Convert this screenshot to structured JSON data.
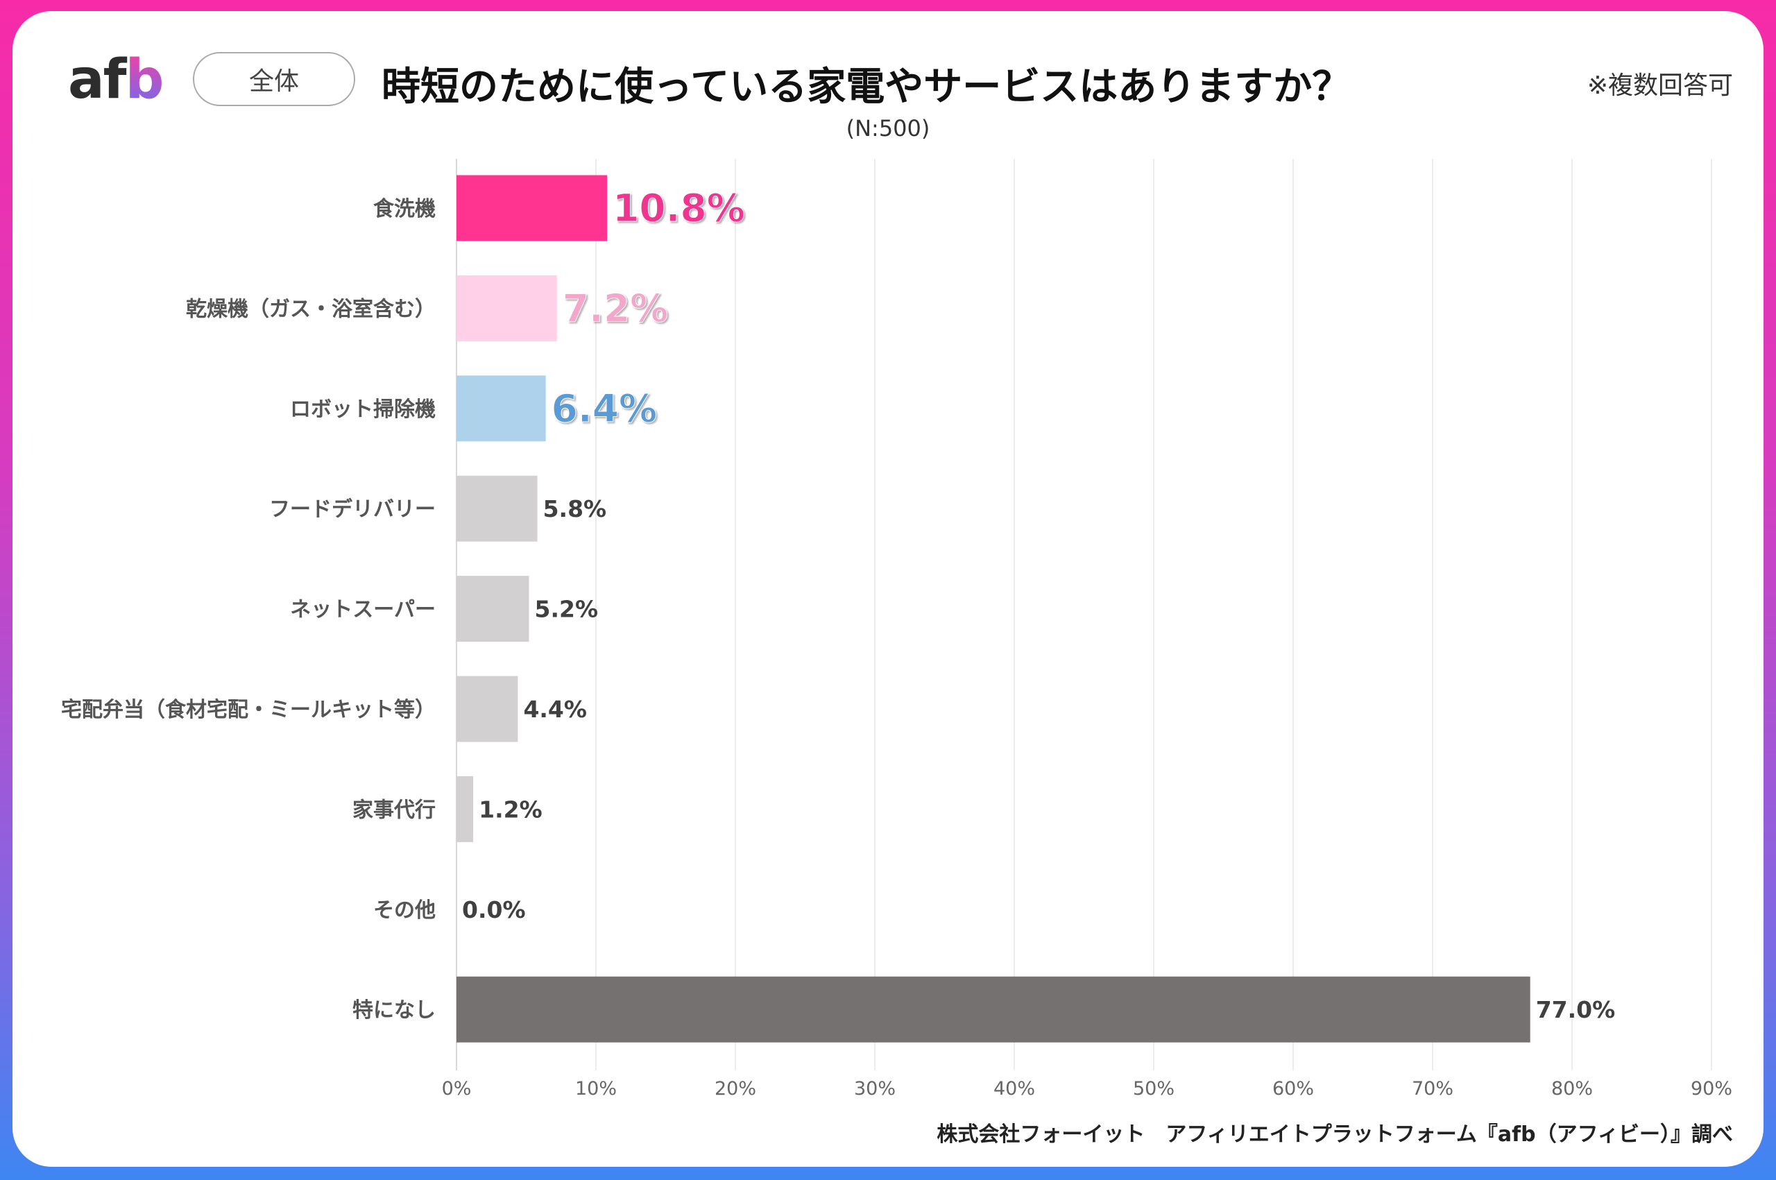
{
  "header": {
    "logo": "afb",
    "segment_label": "全体",
    "title": "時短のために使っている家電やサービスはありますか？",
    "note": "※複数回答可",
    "sample": "(N:500)"
  },
  "footer": "株式会社フォーイット　アフィリエイトプラットフォーム『afb（アフィビー）』調べ",
  "chart_data": {
    "type": "bar",
    "orientation": "horizontal",
    "categories": [
      "食洗機",
      "乾燥機（ガス・浴室含む）",
      "ロボット掃除機",
      "フードデリバリー",
      "ネットスーパー",
      "宅配弁当（食材宅配・ミールキット等）",
      "家事代行",
      "その他",
      "特になし"
    ],
    "values": [
      10.8,
      7.2,
      6.4,
      5.8,
      5.2,
      4.4,
      1.2,
      0.0,
      77.0
    ],
    "value_labels": [
      "10.8%",
      "7.2%",
      "6.4%",
      "5.8%",
      "5.2%",
      "4.4%",
      "1.2%",
      "0.0%",
      "77.0%"
    ],
    "bar_colors": [
      "#ff3390",
      "#ffd0e8",
      "#aed2ec",
      "#d3d0d1",
      "#d3d0d1",
      "#d3d0d1",
      "#d3d0d1",
      "#d3d0d1",
      "#767171"
    ],
    "label_colors": [
      "#f0358f",
      "#f5a6cb",
      "#5b9bd5",
      "#404040",
      "#404040",
      "#404040",
      "#404040",
      "#404040",
      "#404040"
    ],
    "highlighted": [
      true,
      true,
      true,
      false,
      false,
      false,
      false,
      false,
      false
    ],
    "xlim": [
      0,
      90
    ],
    "xticks": [
      "0%",
      "10%",
      "20%",
      "30%",
      "40%",
      "50%",
      "60%",
      "70%",
      "80%",
      "90%"
    ],
    "grid": true,
    "unit": "%"
  }
}
